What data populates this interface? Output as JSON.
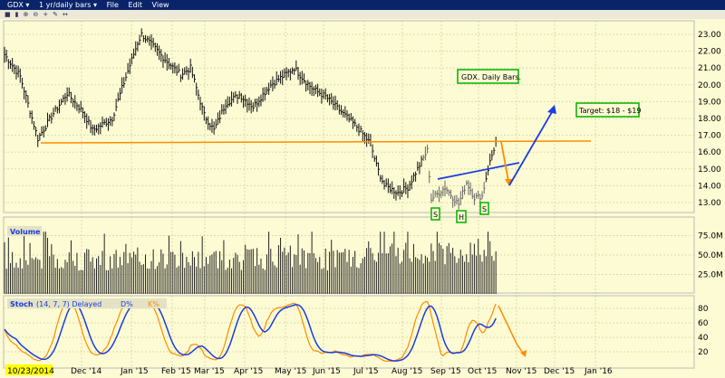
{
  "window": {
    "symbol": "GDX",
    "timeframe": "1 yr/daily bars",
    "menu": [
      "File",
      "Edit",
      "View"
    ]
  },
  "toolbar_icons": [
    "chart-type-icon",
    "bars-icon",
    "zoom-in-icon",
    "zoom-out-icon",
    "crosshair-icon",
    "draw-icon",
    "arrow-icon"
  ],
  "colors": {
    "background": "#fdfbd3",
    "orange": "#ff8c00",
    "blue": "#1a3de0",
    "green": "#00b000"
  },
  "annotations": {
    "title": "GDX. Daily Bars.",
    "target": "Target: $18 - $19",
    "s1": "S",
    "h": "H",
    "s2": "S"
  },
  "panels": {
    "volume": "Volume",
    "stoch": "Stoch",
    "stoch_params": "(14, 7, 7) Delayed",
    "d_label": "D%",
    "k_label": "K%"
  },
  "chart_data": {
    "type": "bar",
    "title": "GDX 1 yr/daily bars",
    "start_date": "10/23/2014",
    "x_ticks": [
      "Dec '14",
      "Jan '15",
      "Feb '15",
      "Mar '15",
      "Apr '15",
      "May '15",
      "Jun '15",
      "Jul '15",
      "Aug '15",
      "Sep '15",
      "Oct '15",
      "Nov '15",
      "Dec '15",
      "Jan '16"
    ],
    "price_ticks": [
      "23.00",
      "22.00",
      "21.00",
      "20.00",
      "19.00",
      "18.00",
      "17.00",
      "16.00",
      "15.00",
      "14.00",
      "13.00"
    ],
    "volume_ticks": [
      "75.0M",
      "50.0M",
      "25.0M"
    ],
    "stoch_ticks": [
      "80",
      "60",
      "40",
      "20"
    ],
    "ylim": [
      12.3,
      23.8
    ],
    "price_keypoints_day_close": [
      [
        0,
        21.8
      ],
      [
        8,
        20.5
      ],
      [
        17,
        16.8
      ],
      [
        25,
        18.3
      ],
      [
        32,
        19.5
      ],
      [
        40,
        18.4
      ],
      [
        45,
        17.3
      ],
      [
        55,
        18.0
      ],
      [
        60,
        19.8
      ],
      [
        68,
        22.5
      ],
      [
        70,
        23.0
      ],
      [
        75,
        22.4
      ],
      [
        82,
        21.5
      ],
      [
        90,
        20.6
      ],
      [
        95,
        21.0
      ],
      [
        102,
        18.2
      ],
      [
        107,
        17.3
      ],
      [
        113,
        18.9
      ],
      [
        120,
        19.4
      ],
      [
        127,
        18.7
      ],
      [
        136,
        20.0
      ],
      [
        148,
        21.0
      ],
      [
        153,
        20.3
      ],
      [
        157,
        19.8
      ],
      [
        164,
        19.3
      ],
      [
        171,
        18.5
      ],
      [
        180,
        17.5
      ],
      [
        187,
        16.5
      ],
      [
        190,
        15.2
      ],
      [
        194,
        14.0
      ],
      [
        201,
        13.6
      ],
      [
        206,
        13.9
      ],
      [
        211,
        15.0
      ],
      [
        216,
        16.1
      ],
      [
        218,
        13.2
      ],
      [
        225,
        13.9
      ],
      [
        232,
        12.9
      ],
      [
        236,
        14.2
      ],
      [
        240,
        13.3
      ],
      [
        244,
        13.4
      ],
      [
        247,
        15.0
      ],
      [
        251,
        16.6
      ]
    ],
    "resistance_level": 16.55,
    "volume_range_M": [
      25,
      80
    ]
  }
}
